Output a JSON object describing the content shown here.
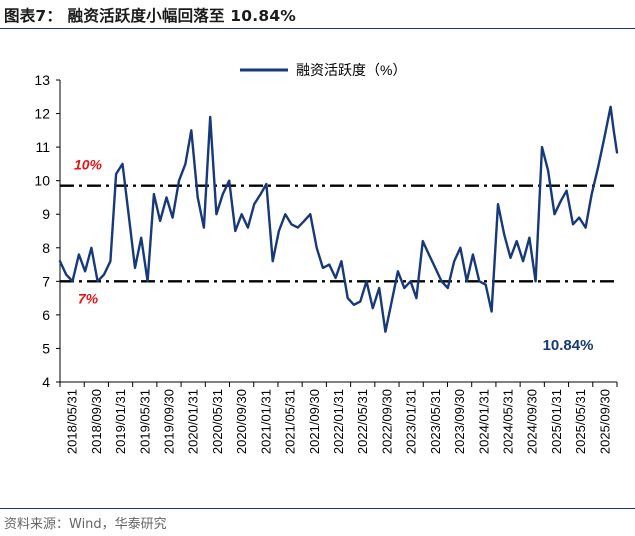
{
  "title": "图表7： 融资活跃度小幅回落至 10.84%",
  "source": "资料来源：Wind，华泰研究",
  "colors": {
    "series": "#17397a",
    "ref_line": "#000000",
    "ref_label": "#e0161b",
    "end_label": "#17397a",
    "axis": "#000000"
  },
  "chart_data": {
    "type": "line",
    "title": "",
    "xlabel": "",
    "ylabel": "",
    "ylim": [
      4,
      13
    ],
    "yticks": [
      4,
      5,
      6,
      7,
      8,
      9,
      10,
      11,
      12,
      13
    ],
    "xticks": [
      "2018/05/31",
      "2018/09/30",
      "2019/01/31",
      "2019/05/31",
      "2019/09/30",
      "2020/01/31",
      "2020/05/31",
      "2020/09/30",
      "2021/01/31",
      "2021/05/31",
      "2021/09/30",
      "2022/01/31",
      "2022/05/31",
      "2022/09/30",
      "2023/01/31",
      "2023/05/31",
      "2023/09/30",
      "2024/01/31",
      "2024/05/31",
      "2024/09/30",
      "2025/01/31",
      "2025/05/31",
      "2025/09/30"
    ],
    "grid": false,
    "legend": "top-center",
    "series": [
      {
        "name": "融资活跃度（%）",
        "x": [
          "2018-05-31",
          "2018-06-30",
          "2018-07-31",
          "2018-08-31",
          "2018-09-30",
          "2018-10-31",
          "2018-11-30",
          "2018-12-31",
          "2019-01-31",
          "2019-02-28",
          "2019-03-31",
          "2019-04-30",
          "2019-05-31",
          "2019-06-30",
          "2019-07-31",
          "2019-08-31",
          "2019-09-30",
          "2019-10-31",
          "2019-11-30",
          "2019-12-31",
          "2020-01-31",
          "2020-02-29",
          "2020-03-31",
          "2020-04-30",
          "2020-05-31",
          "2020-06-30",
          "2020-07-31",
          "2020-08-31",
          "2020-09-30",
          "2020-10-31",
          "2020-11-30",
          "2020-12-31",
          "2021-01-31",
          "2021-02-28",
          "2021-03-31",
          "2021-04-30",
          "2021-05-31",
          "2021-06-30",
          "2021-07-31",
          "2021-08-31",
          "2021-09-30",
          "2021-10-31",
          "2021-11-30",
          "2021-12-31",
          "2022-01-31",
          "2022-02-28",
          "2022-03-31",
          "2022-04-30",
          "2022-05-31",
          "2022-06-30",
          "2022-07-31",
          "2022-08-31",
          "2022-09-30",
          "2022-10-31",
          "2022-11-30",
          "2022-12-31",
          "2023-01-31",
          "2023-02-28",
          "2023-03-31",
          "2023-04-30",
          "2023-05-31",
          "2023-06-30",
          "2023-07-31",
          "2023-08-31",
          "2023-09-30",
          "2023-10-31",
          "2023-11-30",
          "2023-12-31",
          "2024-01-31",
          "2024-02-29",
          "2024-03-31",
          "2024-04-30",
          "2024-05-31",
          "2024-06-30",
          "2024-07-31",
          "2024-08-31",
          "2024-09-30",
          "2024-10-31",
          "2024-11-30",
          "2024-12-31",
          "2025-01-31",
          "2025-02-28",
          "2025-03-31",
          "2025-04-30",
          "2025-05-31",
          "2025-06-30",
          "2025-07-31",
          "2025-08-31",
          "2025-09-30",
          "2025-10-15",
          "2025-10-31"
        ],
        "values": [
          7.6,
          7.2,
          7.0,
          7.8,
          7.3,
          8.0,
          7.0,
          7.2,
          7.6,
          10.2,
          10.5,
          9.0,
          7.4,
          8.3,
          7.0,
          9.6,
          8.8,
          9.5,
          8.9,
          10.0,
          10.5,
          11.5,
          9.5,
          8.6,
          11.9,
          9.0,
          9.6,
          10.0,
          8.5,
          9.0,
          8.6,
          9.3,
          9.6,
          9.9,
          7.6,
          8.5,
          9.0,
          8.7,
          8.6,
          8.8,
          9.0,
          8.0,
          7.4,
          7.5,
          7.1,
          7.6,
          6.5,
          6.3,
          6.4,
          7.0,
          6.2,
          6.8,
          5.5,
          6.4,
          7.3,
          6.8,
          7.0,
          6.5,
          8.2,
          7.8,
          7.4,
          7.0,
          6.8,
          7.6,
          8.0,
          7.0,
          7.8,
          7.0,
          6.9,
          6.1,
          9.3,
          8.4,
          7.7,
          8.2,
          7.6,
          8.3,
          7.0,
          11.0,
          10.3,
          9.0,
          9.4,
          9.7,
          8.7,
          8.9,
          8.6,
          9.6,
          10.4,
          11.3,
          12.2,
          11.5,
          10.84
        ]
      }
    ],
    "reference_lines": [
      {
        "value": 9.85,
        "label": "10%"
      },
      {
        "value": 7.0,
        "label": "7%"
      }
    ],
    "annotations": [
      {
        "text": "10.84%",
        "x": "2025-10-31",
        "y": 10.84
      }
    ]
  }
}
